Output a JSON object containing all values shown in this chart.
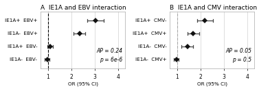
{
  "panel_A": {
    "title": "A  IE1A and EBV interaction",
    "ylabel_labels": [
      "IE1A+  EBV+",
      "IE1A-  EBV+",
      "IE1A+  EBV-",
      "IE1A-  EBV-"
    ],
    "or": [
      3.05,
      2.35,
      1.1,
      0.97
    ],
    "ci_lo": [
      2.7,
      2.1,
      0.97,
      0.88
    ],
    "ci_hi": [
      3.4,
      2.6,
      1.23,
      1.07
    ],
    "annotation": "AP = 0.24\np = 6e-6",
    "vline_color": "#000000",
    "vline_ls": "--"
  },
  "panel_B": {
    "title": "B  IE1A and CMV interaction",
    "ylabel_labels": [
      "IE1A+  CMV-",
      "IE1A+  CMV+",
      "IE1A-  CMV-",
      "IE1A-  CMV+"
    ],
    "or": [
      2.2,
      1.7,
      1.45,
      0.97
    ],
    "ci_lo": [
      1.85,
      1.45,
      1.2,
      0.88
    ],
    "ci_hi": [
      2.55,
      1.95,
      1.7,
      1.07
    ],
    "annotation": "AP = 0.05\np = 0.5",
    "vline_color": "#aaaaaa",
    "vline_ls": "--"
  },
  "xlabel": "OR (95% CI)",
  "xlim": [
    0.7,
    4.3
  ],
  "xticks": [
    1,
    2,
    3,
    4
  ],
  "dot_color": "#111111",
  "dot_size": 4.5,
  "dot_marker": "D",
  "ci_color": "#444444",
  "ci_linewidth": 0.9,
  "grid_color": "#d0d0d0",
  "bg_color": "#ffffff",
  "frame_color": "#aaaaaa",
  "title_fontsize": 6.5,
  "label_fontsize": 5.2,
  "annot_fontsize": 5.5,
  "tick_fontsize": 5.5
}
